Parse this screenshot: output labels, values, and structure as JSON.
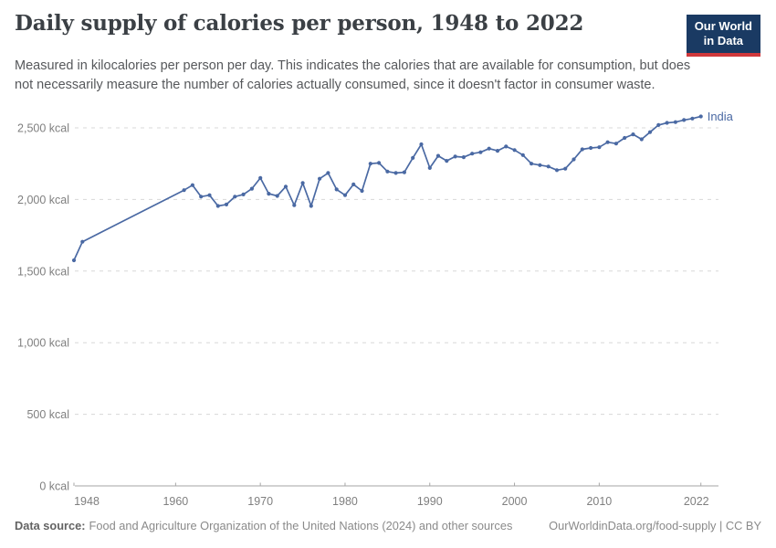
{
  "header": {
    "title": "Daily supply of calories per person, 1948 to 2022",
    "subtitle": "Measured in kilocalories per person per day. This indicates the calories that are available for consumption, but does not necessarily measure the number of calories actually consumed, since it doesn't factor in consumer waste.",
    "logo_line1": "Our World",
    "logo_line2": "in Data"
  },
  "colors": {
    "line": "#4a69a3",
    "gridline": "#d8d8d8",
    "axis": "#a6a6a6",
    "axis_text": "#7f7f7f",
    "logo_bg": "#1a3a63",
    "logo_stripe": "#d0383b"
  },
  "chart_data": {
    "type": "line",
    "title": "Daily supply of calories per person, 1948 to 2022",
    "xlabel": "",
    "ylabel": "",
    "unit": "kcal",
    "xlim": [
      1948,
      2022
    ],
    "ylim": [
      0,
      2500
    ],
    "grid": "horizontal-dashed",
    "legend_position": "end-of-line-label",
    "yticks": [
      {
        "value": 0,
        "label": "0 kcal"
      },
      {
        "value": 500,
        "label": "500 kcal"
      },
      {
        "value": 1000,
        "label": "1,000 kcal"
      },
      {
        "value": 1500,
        "label": "1,500 kcal"
      },
      {
        "value": 2000,
        "label": "2,000 kcal"
      },
      {
        "value": 2500,
        "label": "2,500 kcal"
      }
    ],
    "xticks": [
      {
        "value": 1948,
        "label": "1948"
      },
      {
        "value": 1960,
        "label": "1960"
      },
      {
        "value": 1970,
        "label": "1970"
      },
      {
        "value": 1980,
        "label": "1980"
      },
      {
        "value": 1990,
        "label": "1990"
      },
      {
        "value": 2000,
        "label": "2000"
      },
      {
        "value": 2010,
        "label": "2010"
      },
      {
        "value": 2022,
        "label": "2022"
      }
    ],
    "series": [
      {
        "name": "India",
        "color": "#4a69a3",
        "years": [
          1948,
          1949,
          1961,
          1962,
          1963,
          1964,
          1965,
          1966,
          1967,
          1968,
          1969,
          1970,
          1971,
          1972,
          1973,
          1974,
          1975,
          1976,
          1977,
          1978,
          1979,
          1980,
          1981,
          1982,
          1983,
          1984,
          1985,
          1986,
          1987,
          1988,
          1989,
          1990,
          1991,
          1992,
          1993,
          1994,
          1995,
          1996,
          1997,
          1998,
          1999,
          2000,
          2001,
          2002,
          2003,
          2004,
          2005,
          2006,
          2007,
          2008,
          2009,
          2010,
          2011,
          2012,
          2013,
          2014,
          2015,
          2016,
          2017,
          2018,
          2019,
          2020,
          2021,
          2022
        ],
        "values": [
          1575,
          1705,
          2065,
          2100,
          2020,
          2030,
          1955,
          1965,
          2020,
          2035,
          2075,
          2150,
          2040,
          2025,
          2090,
          1960,
          2115,
          1955,
          2145,
          2185,
          2070,
          2030,
          2105,
          2060,
          2250,
          2255,
          2195,
          2185,
          2190,
          2290,
          2385,
          2220,
          2305,
          2270,
          2300,
          2295,
          2320,
          2330,
          2355,
          2340,
          2370,
          2345,
          2310,
          2250,
          2240,
          2230,
          2205,
          2215,
          2280,
          2350,
          2360,
          2365,
          2400,
          2390,
          2430,
          2455,
          2420,
          2470,
          2520,
          2535,
          2540,
          2555,
          2565,
          2580
        ]
      }
    ]
  },
  "footer": {
    "source_label": "Data source:",
    "source_text": "Food and Agriculture Organization of the United Nations (2024) and other sources",
    "credit": "OurWorldinData.org/food-supply | CC BY"
  }
}
